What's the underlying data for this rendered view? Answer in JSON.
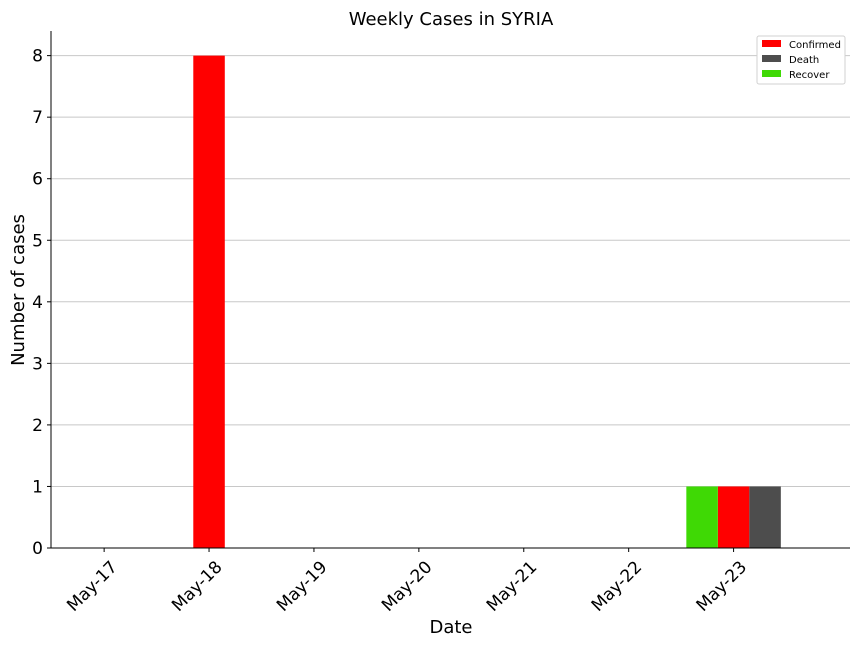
{
  "chart_data": {
    "type": "bar",
    "title": "Weekly Cases in SYRIA",
    "xlabel": "Date",
    "ylabel": "Number of cases",
    "categories": [
      "May-17",
      "May-18",
      "May-19",
      "May-20",
      "May-21",
      "May-22",
      "May-23"
    ],
    "ylim": [
      0,
      8.4
    ],
    "yticks": [
      0,
      1,
      2,
      3,
      4,
      5,
      6,
      7,
      8
    ],
    "grid": "y",
    "legend_placement": "top-right",
    "series": [
      {
        "name": "Confirmed",
        "color": "#ff0000",
        "values": [
          0,
          8,
          0,
          0,
          0,
          0,
          1
        ]
      },
      {
        "name": "Death",
        "color": "#4d4d4d",
        "values": [
          0,
          0,
          0,
          0,
          0,
          0,
          1
        ]
      },
      {
        "name": "Recover",
        "color": "#3fd905",
        "values": [
          0,
          0,
          0,
          0,
          0,
          0,
          1
        ]
      }
    ]
  }
}
